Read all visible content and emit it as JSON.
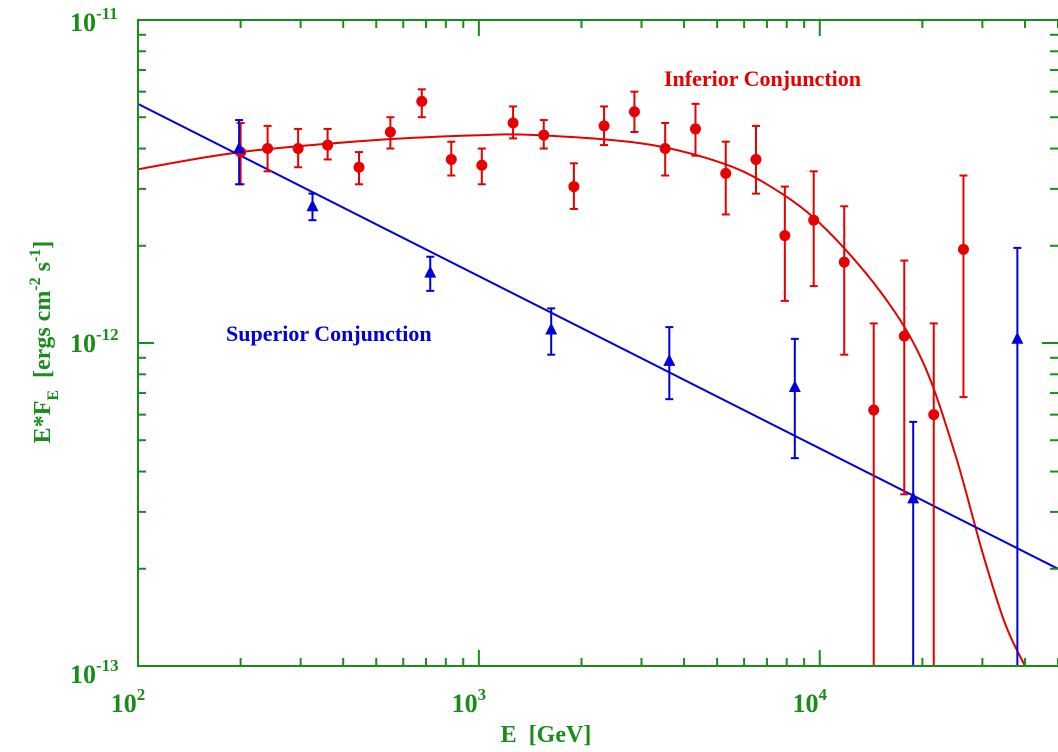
{
  "chart_data": {
    "type": "scatter",
    "xlabel": "E  [GeV]",
    "ylabel": {
      "base": "E*F",
      "base_sub": "E",
      "units_prefix": "  [ergs cm",
      "exp1": "-2",
      "mid": " s",
      "exp2": "-1",
      "close": "]"
    },
    "x_scale": "log",
    "y_scale": "log",
    "xlim": [
      100,
      50000
    ],
    "ylim": [
      1e-13,
      1e-11
    ],
    "x_ticks": [
      {
        "value": 100,
        "base": "10",
        "exp": "2"
      },
      {
        "value": 1000,
        "base": "10",
        "exp": "3"
      },
      {
        "value": 10000,
        "base": "10",
        "exp": "4"
      }
    ],
    "y_ticks": [
      {
        "value": 1e-13,
        "base": "10",
        "exp": "-13"
      },
      {
        "value": 1e-12,
        "base": "10",
        "exp": "-12"
      },
      {
        "value": 1e-11,
        "base": "10",
        "exp": "-11"
      }
    ],
    "colors": {
      "axis": "#1a8c1a",
      "inferior": "#e60000",
      "superior": "#0000dd"
    },
    "annotations": [
      {
        "text": "Inferior Conjunction",
        "series": "inferior"
      },
      {
        "text": "Superior Conjunction",
        "series": "superior"
      }
    ],
    "series": [
      {
        "id": "inferior",
        "marker": "circle",
        "points": [
          {
            "x": 200,
            "y": 3.9e-12,
            "ylo": 3.1e-12,
            "yhi": 4.8e-12
          },
          {
            "x": 240,
            "y": 4e-12,
            "ylo": 3.4e-12,
            "yhi": 4.7e-12
          },
          {
            "x": 295,
            "y": 4e-12,
            "ylo": 3.5e-12,
            "yhi": 4.6e-12
          },
          {
            "x": 360,
            "y": 4.1e-12,
            "ylo": 3.7e-12,
            "yhi": 4.6e-12
          },
          {
            "x": 445,
            "y": 3.5e-12,
            "ylo": 3.1e-12,
            "yhi": 3.9e-12
          },
          {
            "x": 550,
            "y": 4.5e-12,
            "ylo": 4e-12,
            "yhi": 5e-12
          },
          {
            "x": 680,
            "y": 5.6e-12,
            "ylo": 5e-12,
            "yhi": 6.1e-12
          },
          {
            "x": 830,
            "y": 3.7e-12,
            "ylo": 3.3e-12,
            "yhi": 4.2e-12
          },
          {
            "x": 1020,
            "y": 3.55e-12,
            "ylo": 3.1e-12,
            "yhi": 4e-12
          },
          {
            "x": 1260,
            "y": 4.8e-12,
            "ylo": 4.3e-12,
            "yhi": 5.4e-12
          },
          {
            "x": 1550,
            "y": 4.4e-12,
            "ylo": 4e-12,
            "yhi": 4.9e-12
          },
          {
            "x": 1900,
            "y": 3.05e-12,
            "ylo": 2.6e-12,
            "yhi": 3.6e-12
          },
          {
            "x": 2330,
            "y": 4.7e-12,
            "ylo": 4.1e-12,
            "yhi": 5.4e-12
          },
          {
            "x": 2860,
            "y": 5.2e-12,
            "ylo": 4.5e-12,
            "yhi": 6e-12
          },
          {
            "x": 3520,
            "y": 4e-12,
            "ylo": 3.3e-12,
            "yhi": 4.8e-12
          },
          {
            "x": 4320,
            "y": 4.6e-12,
            "ylo": 3.8e-12,
            "yhi": 5.5e-12
          },
          {
            "x": 5300,
            "y": 3.35e-12,
            "ylo": 2.5e-12,
            "yhi": 4.2e-12
          },
          {
            "x": 6500,
            "y": 3.7e-12,
            "ylo": 2.9e-12,
            "yhi": 4.7e-12
          },
          {
            "x": 7900,
            "y": 2.15e-12,
            "ylo": 1.35e-12,
            "yhi": 3.05e-12
          },
          {
            "x": 9600,
            "y": 2.4e-12,
            "ylo": 1.5e-12,
            "yhi": 3.4e-12
          },
          {
            "x": 11800,
            "y": 1.78e-12,
            "ylo": 9.2e-13,
            "yhi": 2.65e-12
          },
          {
            "x": 14400,
            "y": 6.2e-13,
            "ylo": 1e-13,
            "yhi": 1.15e-12
          },
          {
            "x": 17700,
            "y": 1.05e-12,
            "ylo": 3.4e-13,
            "yhi": 1.8e-12
          },
          {
            "x": 21600,
            "y": 6e-13,
            "ylo": 1e-13,
            "yhi": 1.15e-12
          },
          {
            "x": 26400,
            "y": 1.95e-12,
            "ylo": 6.8e-13,
            "yhi": 3.3e-12
          }
        ],
        "fit": {
          "type": "curved",
          "points": [
            {
              "x": 100,
              "y": 3.45e-12
            },
            {
              "x": 200,
              "y": 3.9e-12
            },
            {
              "x": 500,
              "y": 4.25e-12
            },
            {
              "x": 1000,
              "y": 4.4e-12
            },
            {
              "x": 1500,
              "y": 4.4e-12
            },
            {
              "x": 3000,
              "y": 4.15e-12
            },
            {
              "x": 5000,
              "y": 3.65e-12
            },
            {
              "x": 7000,
              "y": 3.1e-12
            },
            {
              "x": 10000,
              "y": 2.35e-12
            },
            {
              "x": 15000,
              "y": 1.45e-12
            },
            {
              "x": 20000,
              "y": 8.8e-13
            },
            {
              "x": 25000,
              "y": 4.5e-13
            },
            {
              "x": 30000,
              "y": 2.25e-13
            },
            {
              "x": 35000,
              "y": 1.35e-13
            },
            {
              "x": 40000,
              "y": 1e-13
            }
          ]
        }
      },
      {
        "id": "superior",
        "marker": "triangle",
        "points": [
          {
            "x": 198,
            "y": 4e-12,
            "ylo": 3.1e-12,
            "yhi": 4.9e-12
          },
          {
            "x": 325,
            "y": 2.65e-12,
            "ylo": 2.4e-12,
            "yhi": 2.9e-12
          },
          {
            "x": 720,
            "y": 1.65e-12,
            "ylo": 1.45e-12,
            "yhi": 1.85e-12
          },
          {
            "x": 1630,
            "y": 1.1e-12,
            "ylo": 9.2e-13,
            "yhi": 1.28e-12
          },
          {
            "x": 3620,
            "y": 8.8e-13,
            "ylo": 6.7e-13,
            "yhi": 1.12e-12
          },
          {
            "x": 8450,
            "y": 7.3e-13,
            "ylo": 4.4e-13,
            "yhi": 1.03e-12
          },
          {
            "x": 18800,
            "y": 3.3e-13,
            "ylo": 1e-13,
            "yhi": 5.7e-13
          },
          {
            "x": 38000,
            "y": 1.03e-12,
            "ylo": 1e-13,
            "yhi": 1.97e-12
          }
        ],
        "fit": {
          "type": "power-law",
          "points": [
            {
              "x": 100,
              "y": 5.5e-12
            },
            {
              "x": 50000,
              "y": 2e-13
            }
          ]
        }
      }
    ]
  }
}
